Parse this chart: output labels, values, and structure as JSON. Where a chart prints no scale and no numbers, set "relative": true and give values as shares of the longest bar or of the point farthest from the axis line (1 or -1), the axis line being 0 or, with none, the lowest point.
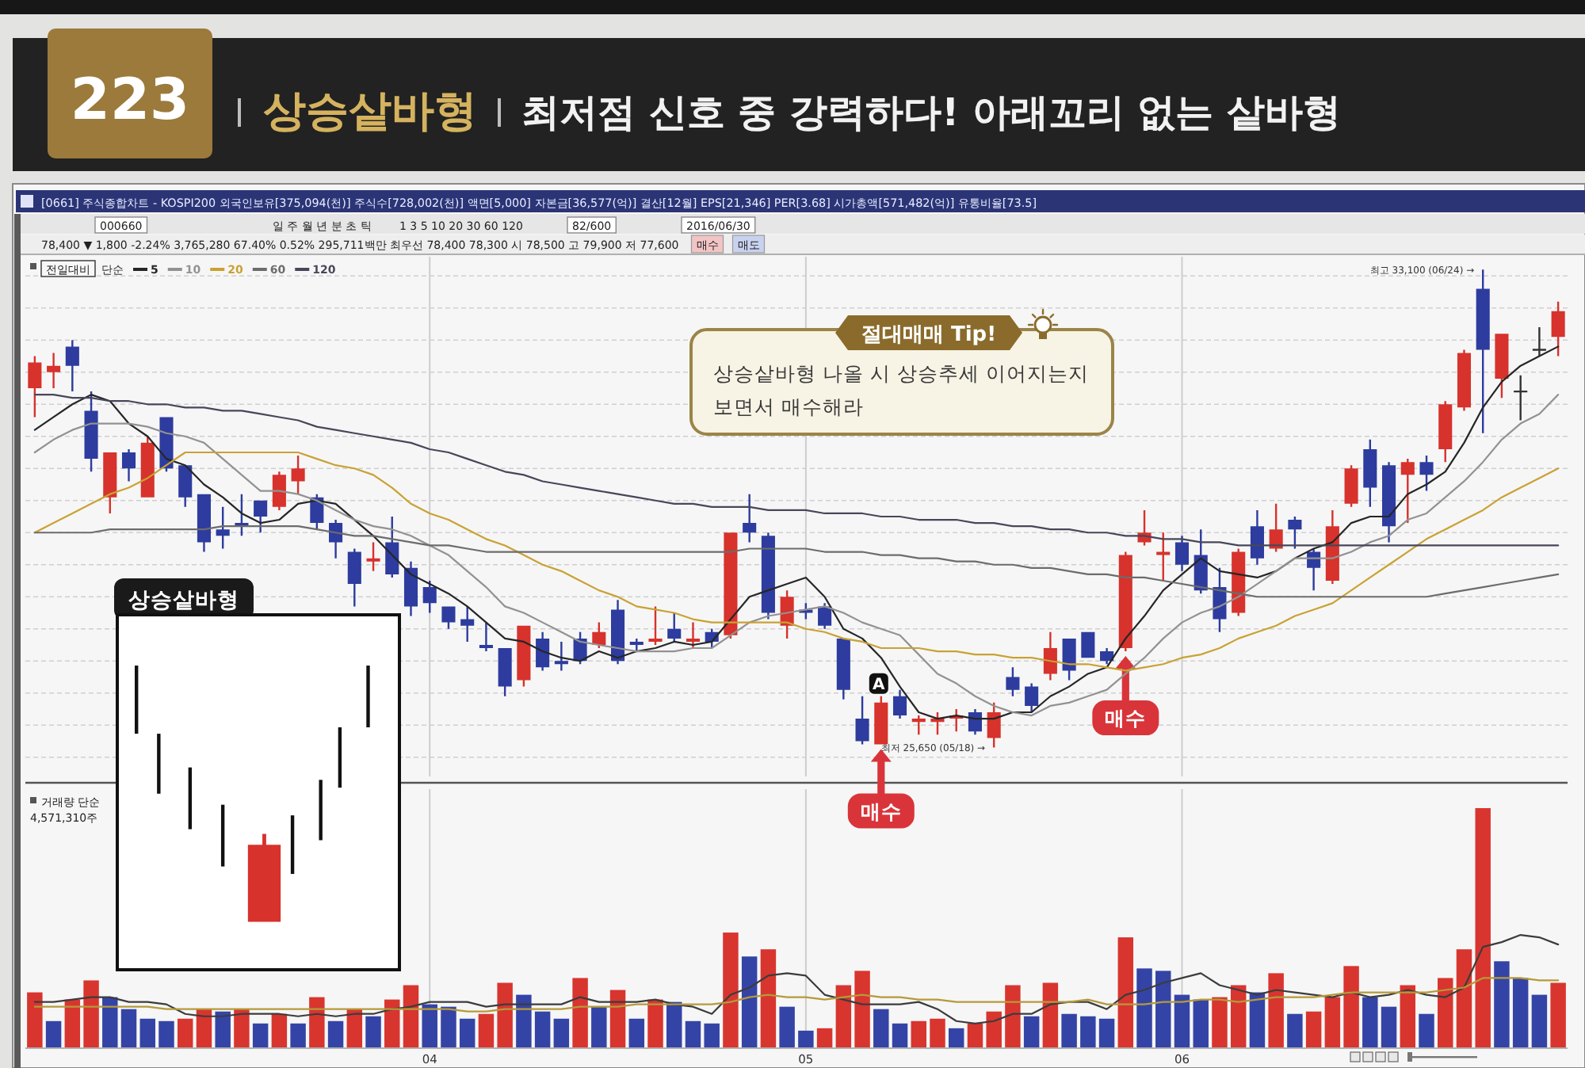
{
  "chart_data": [
    {
      "type": "candlestick",
      "title": "상승샅바형",
      "subtitle": "최저점 신호 중 강력하다! 아래꼬리 없는 샅바형",
      "legend": "top left",
      "legend_title": "단순",
      "categories": [
        null,
        null,
        null,
        null,
        null,
        null,
        null,
        null,
        null,
        null,
        null,
        null,
        null,
        null,
        null,
        null,
        null,
        null,
        null,
        null,
        null,
        "04",
        null,
        null,
        null,
        null,
        null,
        null,
        null,
        null,
        null,
        null,
        null,
        null,
        null,
        null,
        null,
        null,
        null,
        null,
        null,
        "05",
        null,
        null,
        null,
        null,
        null,
        null,
        null,
        null,
        null,
        null,
        null,
        null,
        null,
        null,
        null,
        null,
        null,
        null,
        null,
        "06",
        null,
        null,
        null,
        null,
        null,
        null,
        null,
        null,
        null,
        null,
        null,
        null,
        null,
        null,
        null,
        null,
        null,
        null,
        null,
        null
      ],
      "ylim": [
        25200,
        33300
      ],
      "yticks": [
        {
          "value": 25500,
          "label": null
        },
        {
          "value": 26000,
          "label": null
        },
        {
          "value": 26500,
          "label": null
        },
        {
          "value": 27000,
          "label": null
        },
        {
          "value": 27500,
          "label": null
        },
        {
          "value": 28000,
          "label": null
        },
        {
          "value": 28500,
          "label": null
        },
        {
          "value": 29000,
          "label": null
        },
        {
          "value": 29500,
          "label": null
        },
        {
          "value": 30000,
          "label": null
        },
        {
          "value": 30500,
          "label": null
        },
        {
          "value": 31000,
          "label": null
        },
        {
          "value": 31500,
          "label": null
        },
        {
          "value": 32000,
          "label": null
        },
        {
          "value": 32500,
          "label": null
        },
        {
          "value": 33000,
          "label": null
        }
      ],
      "grid": true,
      "tick_labels": false,
      "ohlc": [
        [
          31250,
          31750,
          30800,
          31650
        ],
        [
          31500,
          31800,
          31250,
          31600
        ],
        [
          31900,
          32000,
          31200,
          31600
        ],
        [
          30900,
          31200,
          29950,
          30150
        ],
        [
          29550,
          30250,
          29300,
          30250
        ],
        [
          30250,
          30300,
          29800,
          30000
        ],
        [
          29550,
          30500,
          29550,
          30400
        ],
        [
          30800,
          30800,
          29950,
          30000
        ],
        [
          30050,
          30050,
          29400,
          29550
        ],
        [
          29600,
          29600,
          28700,
          28850
        ],
        [
          29050,
          29400,
          28750,
          28950
        ],
        [
          29150,
          29600,
          28950,
          29100
        ],
        [
          29500,
          29500,
          29000,
          29250
        ],
        [
          29400,
          29950,
          29350,
          29900
        ],
        [
          29800,
          30200,
          29600,
          30000
        ],
        [
          29550,
          29600,
          29050,
          29150
        ],
        [
          29150,
          29200,
          28600,
          28850
        ],
        [
          28700,
          28750,
          27850,
          28200
        ],
        [
          28550,
          28850,
          28400,
          28600
        ],
        [
          28850,
          29250,
          28300,
          28350
        ],
        [
          28450,
          28550,
          27700,
          27850
        ],
        [
          28150,
          28250,
          27750,
          27900
        ],
        [
          27850,
          27850,
          27500,
          27600
        ],
        [
          27650,
          27850,
          27300,
          27550
        ],
        [
          27250,
          27600,
          27150,
          27200
        ],
        [
          27200,
          27200,
          26450,
          26600
        ],
        [
          26700,
          27550,
          26600,
          27550
        ],
        [
          27350,
          27450,
          26850,
          26900
        ],
        [
          27000,
          27300,
          26850,
          26950
        ],
        [
          27350,
          27450,
          26950,
          27000
        ],
        [
          27250,
          27600,
          27200,
          27450
        ],
        [
          27800,
          27950,
          26950,
          27000
        ],
        [
          27300,
          27350,
          27150,
          27250
        ],
        [
          27300,
          27850,
          27250,
          27350
        ],
        [
          27500,
          27750,
          27300,
          27350
        ],
        [
          27300,
          27600,
          27200,
          27350
        ],
        [
          27450,
          27500,
          27200,
          27300
        ],
        [
          27400,
          29000,
          27350,
          29000
        ],
        [
          29150,
          29600,
          28850,
          29000
        ],
        [
          28950,
          29000,
          27650,
          27750
        ],
        [
          27550,
          28100,
          27350,
          28000
        ],
        [
          27800,
          27900,
          27650,
          27750
        ],
        [
          27850,
          27900,
          27500,
          27550
        ],
        [
          27350,
          27350,
          26400,
          26550
        ],
        [
          26100,
          26450,
          25700,
          25750
        ],
        [
          25700,
          26450,
          25700,
          26350
        ],
        [
          26450,
          26550,
          26100,
          26150
        ],
        [
          26050,
          26150,
          25850,
          26100
        ],
        [
          26050,
          26200,
          25850,
          26100
        ],
        [
          26100,
          26250,
          25900,
          26150
        ],
        [
          26200,
          26250,
          25850,
          25900
        ],
        [
          25800,
          26350,
          25650,
          26200
        ],
        [
          26750,
          26900,
          26450,
          26550
        ],
        [
          26600,
          26650,
          26200,
          26300
        ],
        [
          26800,
          27450,
          26700,
          27200
        ],
        [
          27350,
          27350,
          26700,
          26850
        ],
        [
          27450,
          27450,
          27050,
          27050
        ],
        [
          27150,
          27200,
          26950,
          27000
        ],
        [
          27200,
          28700,
          27150,
          28650
        ],
        [
          28850,
          29350,
          28800,
          29000
        ],
        [
          28650,
          29000,
          28250,
          28700
        ],
        [
          28850,
          28950,
          28400,
          28500
        ],
        [
          28650,
          29050,
          28050,
          28100
        ],
        [
          28150,
          28450,
          27450,
          27650
        ],
        [
          27750,
          28750,
          27700,
          28700
        ],
        [
          29100,
          29350,
          28500,
          28600
        ],
        [
          28750,
          29450,
          28700,
          29050
        ],
        [
          29200,
          29250,
          28750,
          29050
        ],
        [
          28700,
          28750,
          28100,
          28450
        ],
        [
          28250,
          29350,
          28200,
          29100
        ],
        [
          29450,
          30050,
          29400,
          30000
        ],
        [
          30300,
          30450,
          29400,
          29700
        ],
        [
          30050,
          30100,
          28850,
          29100
        ],
        [
          29900,
          30150,
          29150,
          30100
        ],
        [
          30100,
          30200,
          29650,
          29900
        ],
        [
          30300,
          31050,
          30100,
          31000
        ],
        [
          30950,
          31850,
          30900,
          31800
        ],
        [
          32800,
          33100,
          30550,
          31850
        ],
        [
          31400,
          32100,
          31100,
          32100
        ],
        [
          31200,
          31450,
          30750,
          31200
        ],
        [
          31850,
          32200,
          31750,
          31850
        ],
        [
          32050,
          32600,
          31750,
          32450
        ]
      ],
      "colors": [
        "#d7322c",
        "#d7322c",
        "#2d3c9e",
        "#2d3c9e",
        "#d7322c",
        "#2d3c9e",
        "#d7322c",
        "#2d3c9e",
        "#2d3c9e",
        "#2d3c9e",
        "#2d3c9e",
        "#2d3c9e",
        "#2d3c9e",
        "#d7322c",
        "#d7322c",
        "#2d3c9e",
        "#2d3c9e",
        "#2d3c9e",
        "#d7322c",
        "#2d3c9e",
        "#2d3c9e",
        "#2d3c9e",
        "#2d3c9e",
        "#2d3c9e",
        "#2d3c9e",
        "#2d3c9e",
        "#d7322c",
        "#2d3c9e",
        "#2d3c9e",
        "#2d3c9e",
        "#d7322c",
        "#2d3c9e",
        "#2d3c9e",
        "#d7322c",
        "#2d3c9e",
        "#d7322c",
        "#2d3c9e",
        "#d7322c",
        "#2d3c9e",
        "#2d3c9e",
        "#d7322c",
        "#2d3c9e",
        "#2d3c9e",
        "#2d3c9e",
        "#2d3c9e",
        "#d7322c",
        "#2d3c9e",
        "#d7322c",
        "#d7322c",
        "#d7322c",
        "#2d3c9e",
        "#d7322c",
        "#2d3c9e",
        "#2d3c9e",
        "#d7322c",
        "#2d3c9e",
        "#2d3c9e",
        "#2d3c9e",
        "#d7322c",
        "#d7322c",
        "#d7322c",
        "#2d3c9e",
        "#2d3c9e",
        "#2d3c9e",
        "#d7322c",
        "#2d3c9e",
        "#d7322c",
        "#2d3c9e",
        "#2d3c9e",
        "#d7322c",
        "#d7322c",
        "#2d3c9e",
        "#2d3c9e",
        "#d7322c",
        "#2d3c9e",
        "#d7322c",
        "#d7322c",
        "#2d3c9e",
        "#d7322c",
        "#333333",
        "#333333",
        "#d7322c"
      ],
      "series": [
        {
          "name": "5",
          "type": "line",
          "color": "#262626",
          "values": [
            30600,
            30800,
            31000,
            31150,
            31050,
            30700,
            30500,
            30150,
            30050,
            29750,
            29550,
            29300,
            29150,
            29200,
            29450,
            29500,
            29450,
            29200,
            28950,
            28650,
            28350,
            28200,
            28050,
            27850,
            27600,
            27350,
            27300,
            27150,
            27050,
            27000,
            27150,
            27050,
            27150,
            27200,
            27300,
            27250,
            27300,
            27650,
            28000,
            28100,
            28200,
            28300,
            28000,
            27500,
            27350,
            27050,
            26600,
            26200,
            26100,
            26150,
            26100,
            26100,
            26200,
            26200,
            26450,
            26600,
            26800,
            26900,
            27350,
            27700,
            28100,
            28350,
            28600,
            28400,
            28350,
            28300,
            28400,
            28600,
            28750,
            28850,
            29150,
            29250,
            29250,
            29600,
            29750,
            29950,
            30400,
            30950,
            31350,
            31600,
            31750,
            31900
          ]
        },
        {
          "name": "10",
          "type": "line",
          "color": "#929292",
          "values": [
            30250,
            30450,
            30600,
            30700,
            30700,
            30700,
            30650,
            30550,
            30500,
            30400,
            30150,
            29900,
            29650,
            29650,
            29600,
            29500,
            29350,
            29200,
            29100,
            29050,
            28950,
            28800,
            28650,
            28400,
            28150,
            27850,
            27750,
            27600,
            27450,
            27300,
            27250,
            27200,
            27150,
            27150,
            27150,
            27200,
            27200,
            27400,
            27600,
            27700,
            27750,
            27800,
            27850,
            27750,
            27600,
            27500,
            27400,
            27100,
            26800,
            26650,
            26450,
            26300,
            26200,
            26150,
            26300,
            26350,
            26450,
            26550,
            26800,
            27050,
            27350,
            27600,
            27750,
            27850,
            28000,
            28200,
            28400,
            28600,
            28600,
            28600,
            28700,
            28850,
            28950,
            29200,
            29300,
            29550,
            29800,
            30100,
            30450,
            30700,
            30850,
            31150
          ]
        },
        {
          "name": "20",
          "type": "line",
          "color": "#c9a233",
          "values": [
            29000,
            29150,
            29300,
            29450,
            29600,
            29700,
            29850,
            30050,
            30250,
            30250,
            30250,
            30250,
            30250,
            30250,
            30250,
            30150,
            30050,
            30000,
            29900,
            29700,
            29450,
            29300,
            29200,
            29050,
            28900,
            28800,
            28650,
            28500,
            28400,
            28250,
            28100,
            28000,
            27850,
            27800,
            27750,
            27650,
            27600,
            27600,
            27600,
            27600,
            27600,
            27500,
            27450,
            27350,
            27300,
            27200,
            27200,
            27200,
            27150,
            27150,
            27100,
            27100,
            27050,
            27050,
            27000,
            26950,
            26950,
            26900,
            26850,
            26900,
            26950,
            27050,
            27100,
            27200,
            27350,
            27450,
            27550,
            27700,
            27800,
            27900,
            28100,
            28300,
            28500,
            28700,
            28900,
            29050,
            29200,
            29350,
            29550,
            29700,
            29850,
            30000
          ]
        },
        {
          "name": "60",
          "type": "line",
          "color": "#6c6c6c",
          "values": [
            29000,
            29000,
            29000,
            29000,
            29050,
            29050,
            29050,
            29050,
            29050,
            29050,
            29100,
            29100,
            29100,
            29100,
            29100,
            29050,
            29000,
            28950,
            28950,
            28900,
            28850,
            28800,
            28800,
            28750,
            28700,
            28700,
            28700,
            28700,
            28700,
            28700,
            28700,
            28700,
            28700,
            28700,
            28700,
            28700,
            28700,
            28700,
            28750,
            28750,
            28750,
            28750,
            28700,
            28700,
            28700,
            28650,
            28650,
            28600,
            28600,
            28550,
            28550,
            28500,
            28500,
            28450,
            28450,
            28400,
            28350,
            28350,
            28300,
            28300,
            28250,
            28200,
            28150,
            28100,
            28050,
            28000,
            28000,
            28000,
            28000,
            28000,
            28000,
            28000,
            28000,
            28000,
            28000,
            28050,
            28100,
            28150,
            28200,
            28250,
            28300,
            28350
          ]
        },
        {
          "name": "120",
          "type": "line",
          "color": "#47475a",
          "values": [
            31150,
            31150,
            31100,
            31100,
            31050,
            31050,
            31000,
            31000,
            30950,
            30950,
            30900,
            30900,
            30850,
            30800,
            30750,
            30650,
            30600,
            30550,
            30500,
            30450,
            30400,
            30300,
            30250,
            30150,
            30050,
            29950,
            29900,
            29800,
            29750,
            29700,
            29650,
            29600,
            29550,
            29500,
            29450,
            29450,
            29400,
            29400,
            29400,
            29350,
            29350,
            29350,
            29300,
            29300,
            29300,
            29250,
            29250,
            29200,
            29200,
            29200,
            29150,
            29150,
            29100,
            29100,
            29050,
            29050,
            29000,
            29000,
            28950,
            28950,
            28900,
            28900,
            28850,
            28850,
            28800,
            28800,
            28800,
            28800,
            28800,
            28800,
            28800,
            28800,
            28800,
            28800,
            28800,
            28800,
            28800,
            28800,
            28800,
            28800,
            28800,
            28800
          ]
        }
      ],
      "annotations": [
        "223",
        "[0661] 주식종합차트 - KOSPI200 외국인보유[375,094(천)] 주식수[728,002(천)] 액면[5,000] 자본금[36,577(억)] 결산[12월] EPS[21,346] PER[3.68] 시가총액[571,482(억)] 유통비율[73.5]",
        "000660",
        "일 주 월 년 분 초 틱",
        "1 3 5 10 20 30 60 120",
        "82/600",
        "2016/06/30",
        "78,400 ▼ 1,800 -2.24% 3,765,280 67.40% 0.52% 295,711백만 최우선 78,400 78,300 시 78,500 고 79,900 저 77,600",
        "매수",
        "매도",
        "전일대비",
        "최고 33,100 (06/24) →",
        "최저 25,650 (05/18) →",
        "절대매매 Tip!",
        "상승샅바형 나올 시 상승추세 이어지는지 보면서 매수해라",
        "A",
        "매수",
        "매수",
        "상승샅바형"
      ]
    },
    {
      "type": "bar",
      "relative": true,
      "categories": [
        null,
        null,
        null,
        null,
        null,
        null,
        null,
        null,
        null,
        null,
        null,
        null,
        null,
        null,
        null,
        null,
        null,
        null,
        null,
        null,
        null,
        "04",
        null,
        null,
        null,
        null,
        null,
        null,
        null,
        null,
        null,
        null,
        null,
        null,
        null,
        null,
        null,
        null,
        null,
        null,
        null,
        "05",
        null,
        null,
        null,
        null,
        null,
        null,
        null,
        null,
        null,
        null,
        null,
        null,
        null,
        null,
        null,
        null,
        null,
        null,
        null,
        "06",
        null,
        null,
        null,
        null,
        null,
        null,
        null,
        null,
        null,
        null,
        null,
        null,
        null,
        null,
        null,
        null,
        null,
        null,
        null,
        null
      ],
      "grid": "x",
      "tick_labels": "x",
      "values": [
        0.23,
        0.11,
        0.2,
        0.28,
        0.21,
        0.16,
        0.12,
        0.11,
        0.12,
        0.16,
        0.15,
        0.16,
        0.1,
        0.14,
        0.1,
        0.21,
        0.11,
        0.16,
        0.13,
        0.2,
        0.26,
        0.18,
        0.17,
        0.12,
        0.14,
        0.27,
        0.22,
        0.15,
        0.12,
        0.29,
        0.17,
        0.24,
        0.12,
        0.2,
        0.19,
        0.11,
        0.1,
        0.48,
        0.38,
        0.41,
        0.17,
        0.07,
        0.08,
        0.26,
        0.32,
        0.16,
        0.1,
        0.11,
        0.12,
        0.08,
        0.1,
        0.15,
        0.26,
        0.13,
        0.27,
        0.14,
        0.13,
        0.12,
        0.46,
        0.33,
        0.32,
        0.22,
        0.2,
        0.21,
        0.26,
        0.23,
        0.31,
        0.14,
        0.15,
        0.21,
        0.34,
        0.21,
        0.17,
        0.26,
        0.14,
        0.29,
        0.41,
        1,
        0.36,
        0.29,
        0.22,
        0.27
      ],
      "colors": [
        "#d8352f",
        "#3444a6",
        "#d8352f",
        "#d8352f",
        "#3444a6",
        "#3444a6",
        "#3444a6",
        "#3444a6",
        "#d8352f",
        "#d8352f",
        "#3444a6",
        "#d8352f",
        "#3444a6",
        "#d8352f",
        "#3444a6",
        "#d8352f",
        "#3444a6",
        "#d8352f",
        "#3444a6",
        "#d8352f",
        "#d8352f",
        "#3444a6",
        "#3444a6",
        "#3444a6",
        "#d8352f",
        "#d8352f",
        "#3444a6",
        "#3444a6",
        "#3444a6",
        "#d8352f",
        "#3444a6",
        "#d8352f",
        "#3444a6",
        "#d8352f",
        "#3444a6",
        "#3444a6",
        "#3444a6",
        "#d8352f",
        "#3444a6",
        "#d8352f",
        "#3444a6",
        "#3444a6",
        "#d8352f",
        "#d8352f",
        "#d8352f",
        "#3444a6",
        "#3444a6",
        "#d8352f",
        "#d8352f",
        "#3444a6",
        "#d8352f",
        "#d8352f",
        "#d8352f",
        "#3444a6",
        "#d8352f",
        "#3444a6",
        "#3444a6",
        "#3444a6",
        "#d8352f",
        "#3444a6",
        "#3444a6",
        "#3444a6",
        "#3444a6",
        "#d8352f",
        "#d8352f",
        "#3444a6",
        "#d8352f",
        "#3444a6",
        "#d8352f",
        "#d8352f",
        "#d8352f",
        "#3444a6",
        "#3444a6",
        "#d8352f",
        "#3444a6",
        "#d8352f",
        "#d8352f",
        "#d8352f",
        "#3444a6",
        "#3444a6",
        "#3444a6",
        "#d8352f"
      ],
      "series": [
        {
          "type": "line",
          "color": "#3c3c3c",
          "values": [
            0.19,
            0.19,
            0.2,
            0.21,
            0.21,
            0.19,
            0.19,
            0.18,
            0.14,
            0.13,
            0.13,
            0.14,
            0.14,
            0.14,
            0.13,
            0.14,
            0.13,
            0.14,
            0.14,
            0.16,
            0.17,
            0.19,
            0.19,
            0.19,
            0.17,
            0.18,
            0.18,
            0.18,
            0.18,
            0.21,
            0.19,
            0.19,
            0.19,
            0.2,
            0.18,
            0.17,
            0.14,
            0.22,
            0.25,
            0.3,
            0.31,
            0.3,
            0.22,
            0.2,
            0.18,
            0.18,
            0.18,
            0.19,
            0.16,
            0.11,
            0.1,
            0.11,
            0.14,
            0.14,
            0.18,
            0.19,
            0.19,
            0.16,
            0.22,
            0.24,
            0.27,
            0.29,
            0.31,
            0.26,
            0.24,
            0.22,
            0.24,
            0.23,
            0.22,
            0.21,
            0.23,
            0.21,
            0.22,
            0.24,
            0.22,
            0.21,
            0.25,
            0.42,
            0.44,
            0.47,
            0.46,
            0.43
          ]
        },
        {
          "type": "line",
          "color": "#b59a3a",
          "values": [
            0.17,
            0.17,
            0.17,
            0.17,
            0.17,
            0.17,
            0.17,
            0.16,
            0.16,
            0.16,
            0.16,
            0.16,
            0.16,
            0.16,
            0.16,
            0.16,
            0.16,
            0.16,
            0.16,
            0.16,
            0.16,
            0.16,
            0.16,
            0.15,
            0.15,
            0.16,
            0.16,
            0.16,
            0.16,
            0.17,
            0.17,
            0.17,
            0.18,
            0.18,
            0.18,
            0.18,
            0.18,
            0.19,
            0.21,
            0.22,
            0.21,
            0.21,
            0.2,
            0.21,
            0.22,
            0.21,
            0.21,
            0.2,
            0.2,
            0.19,
            0.19,
            0.19,
            0.19,
            0.19,
            0.19,
            0.19,
            0.2,
            0.18,
            0.18,
            0.18,
            0.19,
            0.19,
            0.2,
            0.2,
            0.19,
            0.2,
            0.21,
            0.21,
            0.21,
            0.22,
            0.23,
            0.23,
            0.23,
            0.23,
            0.23,
            0.24,
            0.25,
            0.29,
            0.29,
            0.29,
            0.28,
            0.28
          ]
        }
      ],
      "annotations": [
        "거래량 단순",
        "4,571,310주"
      ]
    }
  ]
}
